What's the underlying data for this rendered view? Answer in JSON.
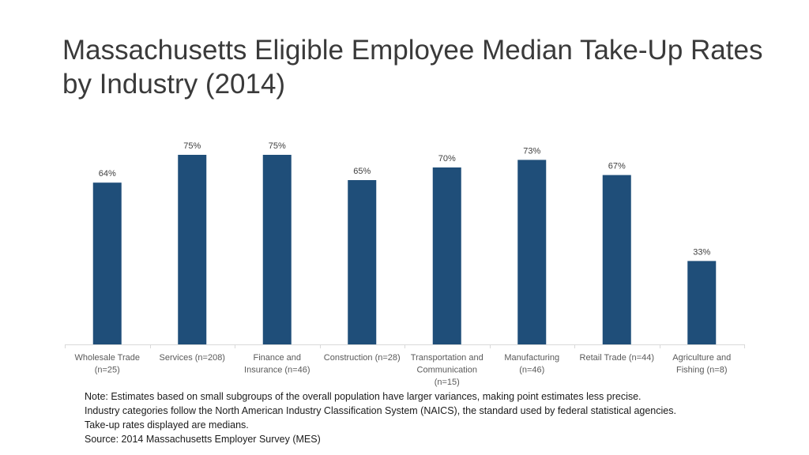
{
  "title": {
    "line1": "Massachusetts Eligible Employee Median Take-Up Rates",
    "line2": "by Industry (2014)"
  },
  "chart_data": {
    "type": "bar",
    "title": "Massachusetts Eligible Employee Median Take-Up Rates by Industry (2014)",
    "categories": [
      [
        "Wholesale Trade",
        "(n=25)"
      ],
      [
        "Services (n=208)"
      ],
      [
        "Finance and",
        "Insurance (n=46)"
      ],
      [
        "Construction (n=28)"
      ],
      [
        "Transportation and",
        "Communication",
        "(n=15)"
      ],
      [
        "Manufacturing",
        "(n=46)"
      ],
      [
        "Retail Trade (n=44)"
      ],
      [
        "Agriculture and",
        "Fishing (n=8)"
      ]
    ],
    "values": [
      64,
      75,
      75,
      65,
      70,
      73,
      67,
      33
    ],
    "data_labels": [
      "64%",
      "75%",
      "75%",
      "65%",
      "70%",
      "73%",
      "67%",
      "33%"
    ],
    "ylim": [
      0,
      80
    ],
    "xlabel": "",
    "ylabel": "",
    "grid": false,
    "bar_color": "#1f4e79"
  },
  "notes": [
    "Note: Estimates based on small subgroups of the overall population have larger variances, making point estimates less precise.",
    "Industry categories follow the North American Industry Classification System (NAICS), the standard used by federal statistical agencies.",
    "Take-up rates displayed are medians.",
    "Source: 2014 Massachusetts Employer Survey (MES)"
  ]
}
